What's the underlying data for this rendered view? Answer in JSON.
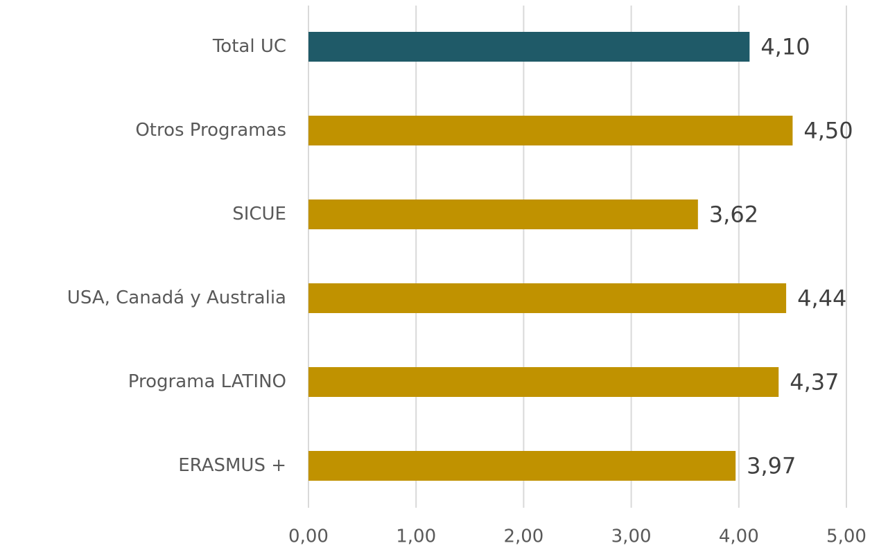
{
  "chart_data": {
    "type": "barh",
    "categories": [
      "Total UC",
      "Otros Programas",
      "SICUE",
      "USA, Canadá y Australia",
      "Programa LATINO",
      "ERASMUS +"
    ],
    "values": [
      4.1,
      4.5,
      3.62,
      4.44,
      4.37,
      3.97
    ],
    "value_labels": [
      "4,10",
      "4,50",
      "3,62",
      "4,44",
      "4,37",
      "3,97"
    ],
    "colors": [
      "#1f5a68",
      "#c09200",
      "#c09200",
      "#c09200",
      "#c09200",
      "#c09200"
    ],
    "xlim": [
      0,
      5
    ],
    "xticks": [
      {
        "value": 0,
        "label": "0,00"
      },
      {
        "value": 1,
        "label": "1,00"
      },
      {
        "value": 2,
        "label": "2,00"
      },
      {
        "value": 3,
        "label": "3,00"
      },
      {
        "value": 4,
        "label": "4,00"
      },
      {
        "value": 5,
        "label": "5,00"
      }
    ],
    "grid": true
  }
}
